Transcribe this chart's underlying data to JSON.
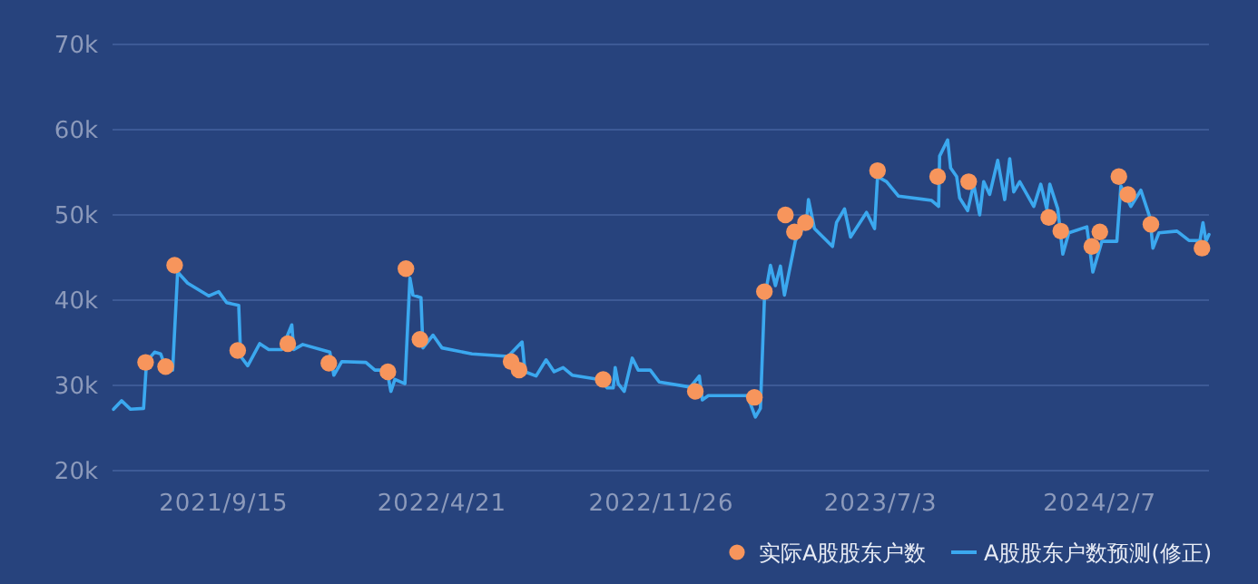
{
  "chart_data": {
    "type": "line",
    "grid": "y",
    "legend": "bottom right",
    "xlim": [
      "2021-05-27",
      "2024-05-26"
    ],
    "xticks": [
      {
        "value": "2021-09-15",
        "label": "2021/9/15"
      },
      {
        "value": "2022-04-21",
        "label": "2022/4/21"
      },
      {
        "value": "2022-11-26",
        "label": "2022/11/26"
      },
      {
        "value": "2023-07-03",
        "label": "2023/7/3"
      },
      {
        "value": "2024-02-07",
        "label": "2024/2/7"
      }
    ],
    "ylim": [
      20000,
      70000
    ],
    "yticks": [
      {
        "value": 20000,
        "label": "20k"
      },
      {
        "value": 30000,
        "label": "30k"
      },
      {
        "value": 40000,
        "label": "40k"
      },
      {
        "value": 50000,
        "label": "50k"
      },
      {
        "value": 60000,
        "label": "60k"
      },
      {
        "value": 70000,
        "label": "70k"
      }
    ],
    "series": [
      {
        "name": "实际A股股东户数",
        "type": "scatter",
        "marker": "circle",
        "color": "#f7955c",
        "x": [
          "2021-06-29",
          "2021-07-19",
          "2021-07-28",
          "2021-09-29",
          "2021-11-18",
          "2021-12-29",
          "2022-02-26",
          "2022-03-16",
          "2022-03-30",
          "2022-06-29",
          "2022-07-07",
          "2022-09-29",
          "2022-12-30",
          "2023-02-27",
          "2023-03-09",
          "2023-03-30",
          "2023-04-08",
          "2023-04-19",
          "2023-06-30",
          "2023-08-29",
          "2023-09-29",
          "2023-12-18",
          "2023-12-30",
          "2024-01-30",
          "2024-02-07",
          "2024-02-26",
          "2024-03-06",
          "2024-03-29",
          "2024-05-19"
        ],
        "values": [
          32700,
          32200,
          44100,
          34100,
          34900,
          32600,
          31600,
          43700,
          35400,
          32800,
          31800,
          30700,
          29300,
          28600,
          41000,
          50000,
          48000,
          49100,
          55200,
          54500,
          53900,
          49700,
          48100,
          46300,
          48000,
          54500,
          52400,
          48900,
          46100
        ]
      },
      {
        "name": "A股股东户数预测(修正)",
        "type": "line",
        "marker": "none",
        "line_style": "solid",
        "color": "#3ba8ef",
        "x": [
          "2021-05-28",
          "2021-06-05",
          "2021-06-14",
          "2021-06-27",
          "2021-06-30",
          "2021-07-08",
          "2021-07-14",
          "2021-07-20",
          "2021-07-26",
          "2021-07-31",
          "2021-08-10",
          "2021-08-31",
          "2021-09-10",
          "2021-09-18",
          "2021-09-30",
          "2021-10-02",
          "2021-10-09",
          "2021-10-21",
          "2021-10-30",
          "2021-11-12",
          "2021-11-22",
          "2021-11-24",
          "2021-12-03",
          "2021-12-30",
          "2022-01-03",
          "2022-01-11",
          "2022-02-04",
          "2022-02-13",
          "2022-02-25",
          "2022-03-01",
          "2022-03-05",
          "2022-03-15",
          "2022-03-20",
          "2022-03-23",
          "2022-03-31",
          "2022-04-02",
          "2022-04-12",
          "2022-04-21",
          "2022-05-21",
          "2022-06-26",
          "2022-07-10",
          "2022-07-13",
          "2022-07-24",
          "2022-08-03",
          "2022-08-11",
          "2022-08-20",
          "2022-08-29",
          "2022-09-25",
          "2022-10-03",
          "2022-10-09",
          "2022-10-11",
          "2022-10-14",
          "2022-10-20",
          "2022-10-28",
          "2022-11-03",
          "2022-11-15",
          "2022-11-24",
          "2022-12-25",
          "2023-01-03",
          "2023-01-06",
          "2023-01-12",
          "2023-02-20",
          "2023-02-28",
          "2023-03-05",
          "2023-03-09",
          "2023-03-15",
          "2023-03-20",
          "2023-03-25",
          "2023-03-29",
          "2023-04-09",
          "2023-04-20",
          "2023-04-22",
          "2023-04-28",
          "2023-05-16",
          "2023-05-20",
          "2023-05-28",
          "2023-06-03",
          "2023-06-19",
          "2023-06-27",
          "2023-06-30",
          "2023-07-09",
          "2023-07-21",
          "2023-08-23",
          "2023-08-30",
          "2023-08-31",
          "2023-09-08",
          "2023-09-11",
          "2023-09-17",
          "2023-09-20",
          "2023-09-28",
          "2023-10-04",
          "2023-10-10",
          "2023-10-14",
          "2023-10-20",
          "2023-10-28",
          "2023-11-04",
          "2023-11-09",
          "2023-11-13",
          "2023-11-19",
          "2023-12-03",
          "2023-12-10",
          "2023-12-16",
          "2023-12-19",
          "2023-12-27",
          "2024-01-01",
          "2024-01-07",
          "2024-01-25",
          "2024-01-31",
          "2024-02-09",
          "2024-02-24",
          "2024-02-28",
          "2024-03-09",
          "2024-03-19",
          "2024-03-28",
          "2024-03-31",
          "2024-04-06",
          "2024-04-24",
          "2024-05-06",
          "2024-05-17",
          "2024-05-20",
          "2024-05-23",
          "2024-05-26"
        ],
        "values": [
          27200,
          28200,
          27200,
          27300,
          32800,
          33900,
          33700,
          31800,
          31800,
          43300,
          42000,
          40500,
          41000,
          39700,
          39400,
          33400,
          32300,
          34900,
          34200,
          34200,
          37100,
          34200,
          34800,
          33900,
          31200,
          32800,
          32700,
          31800,
          31800,
          29300,
          30700,
          30200,
          42600,
          40600,
          40300,
          34400,
          35900,
          34400,
          33700,
          33400,
          35100,
          31600,
          31100,
          33000,
          31600,
          32100,
          31200,
          30700,
          29700,
          29700,
          32100,
          30200,
          29300,
          33200,
          31800,
          31800,
          30400,
          29800,
          31100,
          28300,
          28800,
          28800,
          26300,
          27300,
          40100,
          44100,
          41700,
          44000,
          40600,
          47000,
          49100,
          51800,
          48400,
          46300,
          49100,
          50700,
          47400,
          50300,
          48400,
          54500,
          53900,
          52200,
          51700,
          51000,
          56900,
          58800,
          55500,
          54500,
          52000,
          50500,
          53600,
          50000,
          53900,
          52400,
          56400,
          51800,
          56600,
          52700,
          53900,
          51000,
          53600,
          50700,
          53600,
          50700,
          45400,
          47900,
          48600,
          43300,
          46900,
          46900,
          53400,
          51000,
          52900,
          49700,
          46100,
          47900,
          48100,
          47000,
          47000,
          49100,
          46900,
          47700
        ]
      }
    ]
  }
}
